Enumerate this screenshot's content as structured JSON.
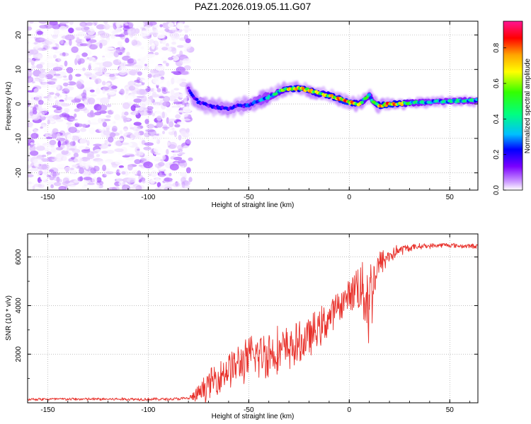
{
  "chart_data": [
    {
      "type": "heatmap",
      "title": "PAZ1.2026.019.05.11.G07",
      "xlabel": "Height of straight line (km)",
      "ylabel": "Frequency (Hz)",
      "xlim": [
        -160,
        64
      ],
      "ylim": [
        -25,
        24
      ],
      "xticks": [
        -150,
        -100,
        -50,
        0,
        50
      ],
      "yticks": [
        -20,
        -10,
        0,
        10,
        20
      ],
      "grid": true,
      "noise_region": {
        "x_range": [
          -160,
          -80
        ],
        "y_range": [
          -25,
          24
        ],
        "description_free": true
      },
      "ridge": {
        "x": [
          -80,
          -78,
          -75,
          -70,
          -65,
          -60,
          -55,
          -50,
          -47,
          -45,
          -40,
          -35,
          -30,
          -25,
          -20,
          -15,
          -10,
          -5,
          0,
          5,
          8,
          10,
          12,
          15,
          20,
          25,
          30,
          40,
          50,
          64
        ],
        "freq": [
          4.5,
          2.5,
          0.5,
          -0.5,
          -1.0,
          -1.5,
          -0.5,
          -0.5,
          0.5,
          1.0,
          2.0,
          3.5,
          4.5,
          4.5,
          4.0,
          3.0,
          2.5,
          1.5,
          0.5,
          0.0,
          1.5,
          2.5,
          0.5,
          -0.5,
          0.0,
          0.0,
          0.3,
          0.5,
          0.8,
          1.0
        ],
        "amp": [
          0.25,
          0.3,
          0.3,
          0.28,
          0.3,
          0.3,
          0.3,
          0.35,
          0.35,
          0.4,
          0.45,
          0.55,
          0.75,
          0.8,
          0.8,
          0.7,
          0.75,
          0.85,
          0.9,
          0.7,
          0.6,
          0.5,
          0.55,
          0.8,
          0.9,
          0.8,
          0.55,
          0.45,
          0.5,
          0.5
        ]
      },
      "colorbar": {
        "label": "Normalized spectral amplitude",
        "range": [
          0.0,
          0.95
        ],
        "ticks": [
          "0.0",
          "0.2",
          "0.4",
          "0.6",
          "0.8"
        ],
        "tick_values": [
          0.0,
          0.2,
          0.4,
          0.6,
          0.8
        ],
        "colors": [
          "#ffffff",
          "#cc99ff",
          "#7b00ff",
          "#0000ff",
          "#00bfff",
          "#00ff80",
          "#33ff00",
          "#ffff00",
          "#ffa500",
          "#ff0000",
          "#ff1493"
        ]
      }
    },
    {
      "type": "line",
      "xlabel": "Height of straight line (km)",
      "ylabel": "SNR (10 * v/v)",
      "xlim": [
        -160,
        64
      ],
      "ylim": [
        0,
        6950
      ],
      "xticks": [
        -150,
        -100,
        -50,
        0,
        50
      ],
      "yticks": [
        2000,
        4000,
        6000
      ],
      "grid": true,
      "line_color": "#e8302a",
      "series": [
        {
          "name": "SNR",
          "x": [
            -160,
            -120,
            -90,
            -80,
            -76,
            -72,
            -68,
            -64,
            -60,
            -56,
            -52,
            -48,
            -44,
            -40,
            -36,
            -32,
            -28,
            -24,
            -20,
            -16,
            -12,
            -8,
            -4,
            0,
            4,
            8,
            10,
            12,
            14,
            16,
            20,
            24,
            28,
            32,
            36,
            40,
            48,
            56,
            64
          ],
          "y": [
            150,
            150,
            150,
            180,
            300,
            600,
            900,
            1150,
            1400,
            1550,
            1700,
            1900,
            2000,
            2050,
            2150,
            2150,
            2300,
            2450,
            2700,
            3000,
            3300,
            3700,
            4100,
            4400,
            4900,
            4500,
            4200,
            5000,
            5500,
            5800,
            6050,
            6250,
            6350,
            6400,
            6450,
            6450,
            6500,
            6450,
            6450
          ],
          "noise": [
            70,
            70,
            70,
            80,
            350,
            600,
            700,
            800,
            900,
            950,
            1000,
            1100,
            1200,
            1200,
            1150,
            1100,
            1000,
            1000,
            950,
            900,
            900,
            800,
            700,
            700,
            1200,
            1800,
            2400,
            1400,
            800,
            600,
            450,
            300,
            200,
            150,
            130,
            120,
            110,
            110,
            110
          ]
        }
      ]
    }
  ]
}
